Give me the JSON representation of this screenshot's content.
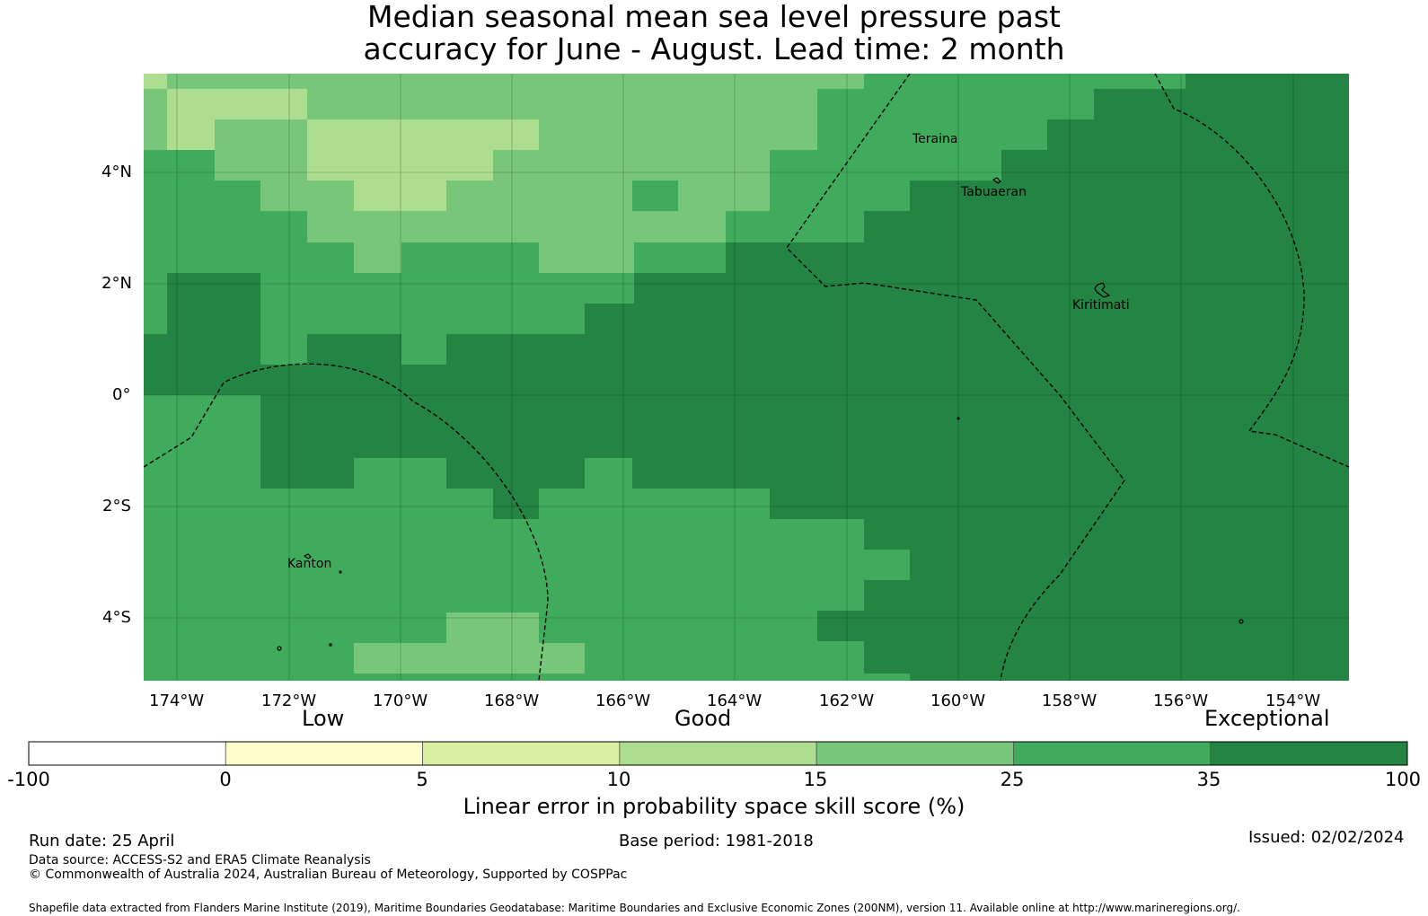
{
  "title_line1": "Median seasonal mean sea level pressure past",
  "title_line2": "accuracy for June - August. Lead time: 2 month",
  "map": {
    "lon_range": [
      -174.6,
      -153.0
    ],
    "lat_range": [
      -5.1,
      5.8
    ],
    "x_ticks": [
      "174°W",
      "172°W",
      "170°W",
      "168°W",
      "166°W",
      "164°W",
      "162°W",
      "160°W",
      "158°W",
      "156°W",
      "154°W"
    ],
    "y_ticks": [
      "4°N",
      "2°N",
      "0°",
      "2°S",
      "4°S"
    ],
    "places": [
      "Teraina",
      "Tabuaeran",
      "Kiritimati",
      "Kanton"
    ],
    "grid": true
  },
  "colorbar": {
    "band_labels": [
      "Low",
      "Good",
      "Exceptional"
    ],
    "bounds": [
      "-100",
      "0",
      "5",
      "10",
      "15",
      "25",
      "35",
      "100"
    ],
    "colors": [
      "#ffffff",
      "#ffffcc",
      "#d9f0a3",
      "#addd8e",
      "#78c679",
      "#41ab5d",
      "#238443"
    ],
    "label": "Linear error in probability space skill score (%)"
  },
  "footer": {
    "run_date": "Run date: 25 April",
    "base_period": "Base period: 1981-2018",
    "issued": "Issued: 02/02/2024",
    "data_source": "Data source: ACCESS-S2 and ERA5 Climate Reanalysis",
    "copyright": "© Commonwealth of Australia 2024, Australian Bureau of Meteorology, Supported by COSPPac",
    "shapefile": "Shapefile data extracted from Flanders Marine Institute (2019), Maritime Boundaries Geodatabase: Maritime Boundaries and Exclusive Economic Zones (200NM), version 11. Available online at http://www.marineregions.org/."
  }
}
